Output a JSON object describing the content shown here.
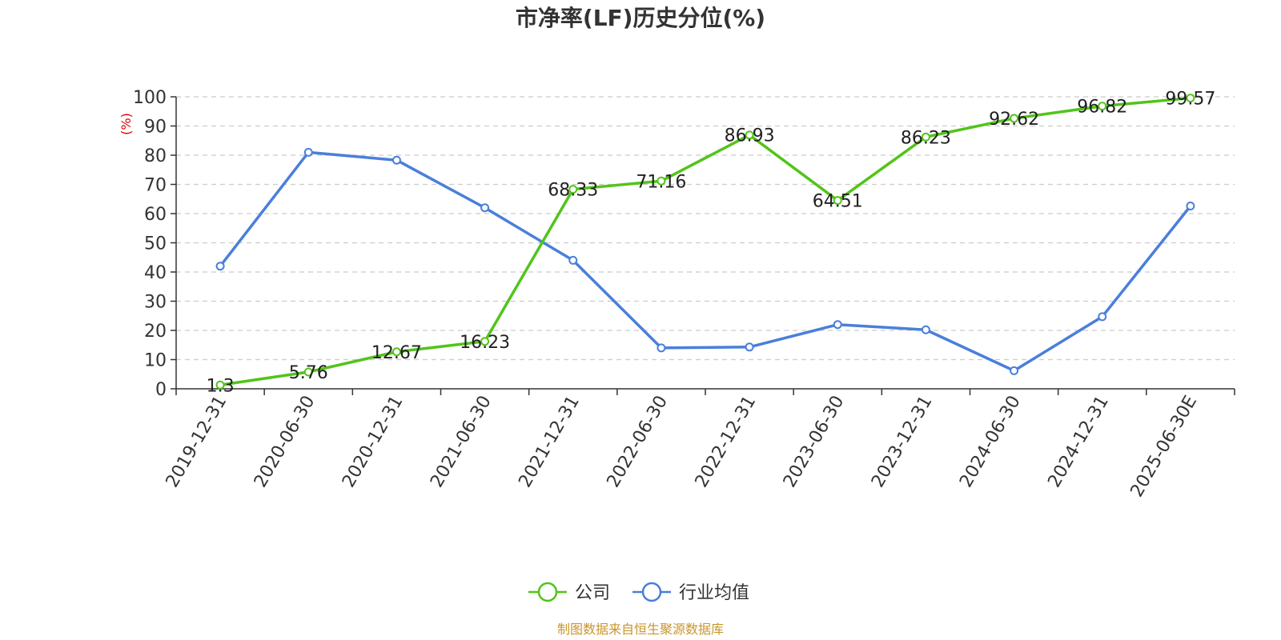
{
  "chart_data": {
    "type": "line",
    "title": "市净率(LF)历史分位(%)",
    "ylabel": "(%)",
    "ylim": [
      0,
      100
    ],
    "yticks": [
      0,
      10,
      20,
      30,
      40,
      50,
      60,
      70,
      80,
      90,
      100
    ],
    "grid": true,
    "legend_position": "bottom",
    "categories": [
      "2019-12-31",
      "2020-06-30",
      "2020-12-31",
      "2021-06-30",
      "2021-12-31",
      "2022-06-30",
      "2022-12-31",
      "2023-06-30",
      "2023-12-31",
      "2024-06-30",
      "2024-12-31",
      "2025-06-30E"
    ],
    "series": [
      {
        "name": "公司",
        "color": "#52c41a",
        "values": [
          1.3,
          5.76,
          12.67,
          16.23,
          68.33,
          71.16,
          86.93,
          64.51,
          86.23,
          92.62,
          96.82,
          99.57
        ],
        "labels": [
          "1.3",
          "5.76",
          "12.67",
          "16.23",
          "68.33",
          "71.16",
          "86.93",
          "64.51",
          "86.23",
          "92.62",
          "96.82",
          "99.57"
        ]
      },
      {
        "name": "行业均值",
        "color": "#4a7fdb",
        "values": [
          42,
          81,
          78.3,
          62,
          44,
          14,
          14.3,
          22,
          20.2,
          6.2,
          24.7,
          62.6
        ]
      }
    ]
  },
  "source": "制图数据来自恒生聚源数据库"
}
